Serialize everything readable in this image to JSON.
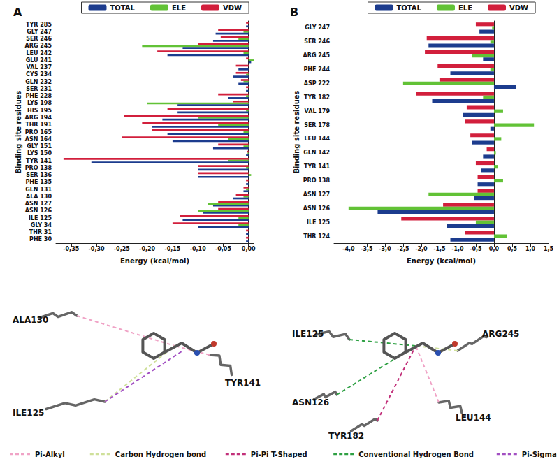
{
  "chart_data": [
    {
      "type": "bar",
      "title": "A",
      "orientation": "horizontal",
      "x_label": "Energy (kcal/mol)",
      "y_label": "Binding site residues",
      "categories": [
        "PHE 30",
        "THR 31",
        "GLY 34",
        "ILE 125",
        "ASN 126",
        "ASN 127",
        "ALA 130",
        "GLN 131",
        "PHE 135",
        "SER 136",
        "PRO 138",
        "TYR 141",
        "LYS 150",
        "GLY 151",
        "ASN 164",
        "PRO 165",
        "THR 191",
        "ARG 194",
        "HIS 195",
        "LYS 198",
        "PHE 228",
        "SER 231",
        "GLN 232",
        "CYS 234",
        "VAL 237",
        "GLU 241",
        "LEU 242",
        "ARG 245",
        "SER 246",
        "GLY 247",
        "TYR 285"
      ],
      "series": [
        {
          "name": "TOTAL",
          "color": "#1c3c8e",
          "values": [
            -0.005,
            -0.005,
            -0.1,
            -0.13,
            -0.09,
            -0.07,
            -0.03,
            -0.01,
            -0.005,
            -0.1,
            -0.1,
            -0.31,
            -0.005,
            -0.07,
            -0.15,
            -0.16,
            -0.19,
            -0.17,
            -0.14,
            -0.14,
            -0.04,
            -0.005,
            -0.02,
            -0.03,
            -0.02,
            0.005,
            -0.16,
            -0.13,
            -0.07,
            -0.065,
            -0.005
          ]
        },
        {
          "name": "ELE",
          "color": "#62c236",
          "values": [
            0,
            0,
            -0.02,
            -0.02,
            -0.1,
            -0.08,
            -0.01,
            -0.005,
            0,
            0.005,
            -0.005,
            -0.04,
            -0.002,
            -0.01,
            -0.04,
            -0.01,
            -0.06,
            -0.1,
            -0.005,
            -0.2,
            -0.005,
            0,
            -0.01,
            -0.005,
            0,
            0.01,
            -0.01,
            -0.21,
            -0.02,
            -0.01,
            0
          ]
        },
        {
          "name": "VDW",
          "color": "#d21f3c",
          "values": [
            -0.005,
            -0.005,
            -0.15,
            -0.135,
            -0.06,
            -0.06,
            -0.025,
            -0.01,
            -0.005,
            -0.1,
            -0.1,
            -0.365,
            -0.003,
            -0.06,
            -0.25,
            -0.19,
            -0.21,
            -0.245,
            -0.16,
            -0.03,
            -0.06,
            -0.005,
            -0.015,
            -0.025,
            -0.025,
            -0.005,
            -0.18,
            -0.1,
            -0.055,
            -0.06,
            -0.005
          ]
        }
      ],
      "xlim": [
        -0.38,
        0.01
      ],
      "xticks": [
        {
          "value": -0.35,
          "label": "-0,35"
        },
        {
          "value": -0.3,
          "label": "-0,30"
        },
        {
          "value": -0.25,
          "label": "-0,25"
        },
        {
          "value": -0.2,
          "label": "-0,20"
        },
        {
          "value": -0.15,
          "label": "-0,15"
        },
        {
          "value": -0.1,
          "label": "-0,10"
        },
        {
          "value": -0.05,
          "label": "-0,05"
        },
        {
          "value": 0,
          "label": "0,00"
        }
      ],
      "grid": false,
      "legend": "top"
    },
    {
      "type": "bar",
      "title": "B",
      "orientation": "horizontal",
      "x_label": "Energy (kcal/mol)",
      "y_label": "Binding site residues",
      "categories": [
        "THR 124",
        "ILE 125",
        "ASN 126",
        "ASN 127",
        "PRO 138",
        "TYR 141",
        "GLN 142",
        "LEU 144",
        "SER 178",
        "VAL 179",
        "TYR 182",
        "ASP 222",
        "PHE 244",
        "ARG 245",
        "SER 246",
        "GLY 247"
      ],
      "series": [
        {
          "name": "TOTAL",
          "color": "#1c3c8e",
          "values": [
            -1.2,
            -1.3,
            -3.2,
            -0.55,
            -0.45,
            -0.35,
            -0.3,
            -0.6,
            -0.1,
            -0.85,
            -1.7,
            0.6,
            -1.2,
            -0.3,
            -1.8,
            -0.4
          ]
        },
        {
          "name": "ELE",
          "color": "#62c236",
          "values": [
            0.35,
            -0.5,
            -4.0,
            -1.8,
            0.25,
            0.1,
            0.05,
            0.2,
            1.1,
            0.25,
            -0.3,
            -2.5,
            -0.1,
            -0.6,
            -0.1,
            -0.05
          ]
        },
        {
          "name": "VDW",
          "color": "#d21f3c",
          "values": [
            -0.8,
            -2.55,
            -1.4,
            -0.45,
            -0.45,
            -0.5,
            -0.2,
            -0.65,
            -0.8,
            -0.75,
            -2.15,
            -1.5,
            -1.55,
            -1.9,
            -1.85,
            -0.5
          ]
        }
      ],
      "xlim": [
        -4.4,
        1.5
      ],
      "xticks": [
        {
          "value": -4.0,
          "label": "-4,0"
        },
        {
          "value": -3.5,
          "label": "-3,5"
        },
        {
          "value": -3.0,
          "label": "-3,0"
        },
        {
          "value": -2.5,
          "label": "-2,5"
        },
        {
          "value": -2.0,
          "label": "-2,0"
        },
        {
          "value": -1.5,
          "label": "-1,5"
        },
        {
          "value": -1.0,
          "label": "-1,0"
        },
        {
          "value": -0.5,
          "label": "-0,5"
        },
        {
          "value": 0,
          "label": "0,0"
        },
        {
          "value": 0.5,
          "label": "0,5"
        },
        {
          "value": 1.0,
          "label": "1,0"
        },
        {
          "value": 1.5,
          "label": "1,5"
        }
      ],
      "grid": false,
      "legend": "top"
    }
  ],
  "interaction_diagrams": {
    "legend": [
      {
        "label": "Pi-Alkyl",
        "color": "#f0a3c6"
      },
      {
        "label": "Carbon Hydrogen bond",
        "color": "#cfe09a"
      },
      {
        "label": "Pi-Pi T-Shaped",
        "color": "#c2307a"
      },
      {
        "label": "Conventional Hydrogen Bond",
        "color": "#2ea043"
      },
      {
        "label": "Pi-Sigma",
        "color": "#a24fc2"
      }
    ],
    "panels": [
      {
        "residues": [
          {
            "label": "ALA130",
            "interactions": [
              "Pi-Alkyl"
            ]
          },
          {
            "label": "ILE125",
            "interactions": [
              "Carbon Hydrogen bond",
              "Pi-Sigma"
            ]
          },
          {
            "label": "TYR141",
            "interactions": [
              "Pi-Alkyl"
            ]
          }
        ]
      },
      {
        "residues": [
          {
            "label": "ILE125",
            "interactions": [
              "Conventional Hydrogen Bond"
            ]
          },
          {
            "label": "ASN126",
            "interactions": [
              "Conventional Hydrogen Bond"
            ]
          },
          {
            "label": "ARG245",
            "interactions": [
              "Carbon Hydrogen bond"
            ]
          },
          {
            "label": "TYR182",
            "interactions": [
              "Pi-Pi T-Shaped"
            ]
          },
          {
            "label": "LEU144",
            "interactions": [
              "Pi-Alkyl"
            ]
          }
        ]
      }
    ]
  }
}
